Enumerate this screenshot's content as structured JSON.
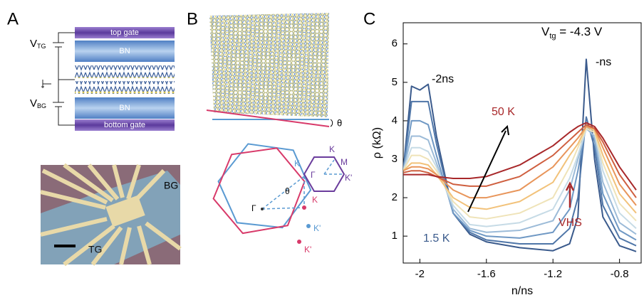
{
  "panel_a": {
    "letter": "A",
    "v_tg": {
      "main": "V",
      "sub": "TG"
    },
    "v_bg": {
      "main": "V",
      "sub": "BG"
    },
    "layers": [
      "top gate",
      "BN",
      "BN",
      "bottom gate"
    ],
    "photo_labels": [
      "BG",
      "TG"
    ]
  },
  "panel_b": {
    "letter": "B",
    "twist_label": "θ",
    "bz_labels": {
      "blue_k": "K",
      "blue_kp": "K'",
      "red_k": "K",
      "red_kp": "K'",
      "purple_k": "K",
      "purple_m": "M",
      "purple_gamma": "Γ",
      "purple_kp": "K'",
      "gamma": "Γ",
      "theta": "θ"
    }
  },
  "panel_c": {
    "letter": "C"
  },
  "chart_data": {
    "type": "line",
    "x_label": "n/ns",
    "y_label": "ρ (kΩ)",
    "gate_voltage": {
      "main": "V",
      "sub": "tg",
      "rest": " = -4.3 V"
    },
    "annotations": {
      "left_peak": "-2ns",
      "right_peak": "-ns",
      "high_t": "50 K",
      "low_t": "1.5 K",
      "vhs": "VHS"
    },
    "xlim": [
      -2.1,
      -0.67
    ],
    "ylim": [
      0.3,
      6.55
    ],
    "xticks": [
      -2,
      -1.6,
      -1.2,
      -0.8
    ],
    "yticks": [
      1,
      2,
      3,
      4,
      5,
      6
    ],
    "x": [
      -2.1,
      -2.05,
      -2.0,
      -1.95,
      -1.9,
      -1.8,
      -1.7,
      -1.6,
      -1.4,
      -1.2,
      -1.1,
      -1.05,
      -1.0,
      -0.95,
      -0.9,
      -0.8,
      -0.7
    ],
    "series": [
      {
        "color": "#3a5a8c",
        "values": [
          2.7,
          4.9,
          4.8,
          4.95,
          3.6,
          1.6,
          1.05,
          0.85,
          0.7,
          0.62,
          0.8,
          1.5,
          5.6,
          3.0,
          1.5,
          0.75,
          0.6
        ]
      },
      {
        "color": "#4f76a8",
        "values": [
          2.7,
          4.5,
          4.5,
          4.5,
          3.4,
          1.6,
          1.1,
          0.9,
          0.8,
          0.8,
          1.2,
          2.0,
          4.1,
          3.3,
          1.8,
          0.95,
          0.75
        ]
      },
      {
        "color": "#6f98c4",
        "values": [
          2.7,
          4.0,
          4.0,
          3.9,
          3.1,
          1.6,
          1.15,
          1.0,
          0.95,
          1.1,
          1.7,
          2.7,
          3.9,
          3.5,
          2.1,
          1.15,
          0.9
        ]
      },
      {
        "color": "#9cbbd8",
        "values": [
          2.7,
          3.6,
          3.6,
          3.5,
          2.9,
          1.7,
          1.2,
          1.1,
          1.15,
          1.4,
          2.2,
          3.0,
          3.8,
          3.6,
          2.4,
          1.35,
          1.05
        ]
      },
      {
        "color": "#c6dbe6",
        "values": [
          2.7,
          3.3,
          3.3,
          3.2,
          2.8,
          1.8,
          1.3,
          1.25,
          1.35,
          1.7,
          2.5,
          3.1,
          3.8,
          3.7,
          2.7,
          1.6,
          1.2
        ]
      },
      {
        "color": "#efe3b8",
        "values": [
          2.7,
          3.1,
          3.1,
          3.0,
          2.7,
          1.9,
          1.5,
          1.45,
          1.6,
          2.0,
          2.8,
          3.3,
          3.8,
          3.7,
          2.9,
          1.85,
          1.4
        ]
      },
      {
        "color": "#f2c27a",
        "values": [
          2.7,
          2.9,
          2.9,
          2.85,
          2.6,
          2.0,
          1.75,
          1.7,
          1.9,
          2.4,
          3.1,
          3.4,
          3.85,
          3.75,
          3.1,
          2.1,
          1.6
        ]
      },
      {
        "color": "#e8955a",
        "values": [
          2.7,
          2.8,
          2.8,
          2.75,
          2.6,
          2.2,
          2.0,
          2.0,
          2.2,
          2.8,
          3.3,
          3.55,
          3.85,
          3.8,
          3.3,
          2.35,
          1.8
        ]
      },
      {
        "color": "#cf5f3f",
        "values": [
          2.65,
          2.7,
          2.7,
          2.65,
          2.55,
          2.35,
          2.3,
          2.3,
          2.55,
          3.1,
          3.5,
          3.7,
          3.9,
          3.8,
          3.45,
          2.6,
          2.0
        ]
      },
      {
        "color": "#a8282a",
        "values": [
          2.6,
          2.6,
          2.6,
          2.6,
          2.55,
          2.5,
          2.5,
          2.55,
          2.85,
          3.35,
          3.7,
          3.85,
          3.95,
          3.85,
          3.55,
          2.8,
          2.2
        ]
      }
    ]
  }
}
